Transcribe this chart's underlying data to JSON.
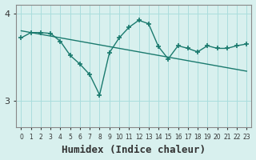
{
  "x": [
    0,
    1,
    2,
    3,
    4,
    5,
    6,
    7,
    8,
    9,
    10,
    11,
    12,
    13,
    14,
    15,
    16,
    17,
    18,
    19,
    20,
    21,
    22,
    23
  ],
  "y_data": [
    3.72,
    3.78,
    3.78,
    3.77,
    3.68,
    3.52,
    3.42,
    3.3,
    3.07,
    3.55,
    3.72,
    3.84,
    3.92,
    3.88,
    3.62,
    3.48,
    3.63,
    3.6,
    3.56,
    3.63,
    3.6,
    3.6,
    3.63,
    3.65
  ],
  "y_trend": [
    3.8,
    3.78,
    3.76,
    3.74,
    3.72,
    3.7,
    3.68,
    3.66,
    3.64,
    3.62,
    3.6,
    3.58,
    3.56,
    3.54,
    3.52,
    3.5,
    3.48,
    3.46,
    3.44,
    3.42,
    3.4,
    3.38,
    3.36,
    3.34
  ],
  "line_color": "#1a7a6e",
  "trend_color": "#1a7a6e",
  "bg_color": "#d8f0ee",
  "plot_bg": "#d8f0ee",
  "xlabel": "Humidex (Indice chaleur)",
  "yticks": [
    3,
    4
  ],
  "ylim": [
    2.7,
    4.1
  ],
  "xlim": [
    -0.5,
    23.5
  ],
  "grid_color": "#aadddd",
  "xlabel_fontsize": 9
}
